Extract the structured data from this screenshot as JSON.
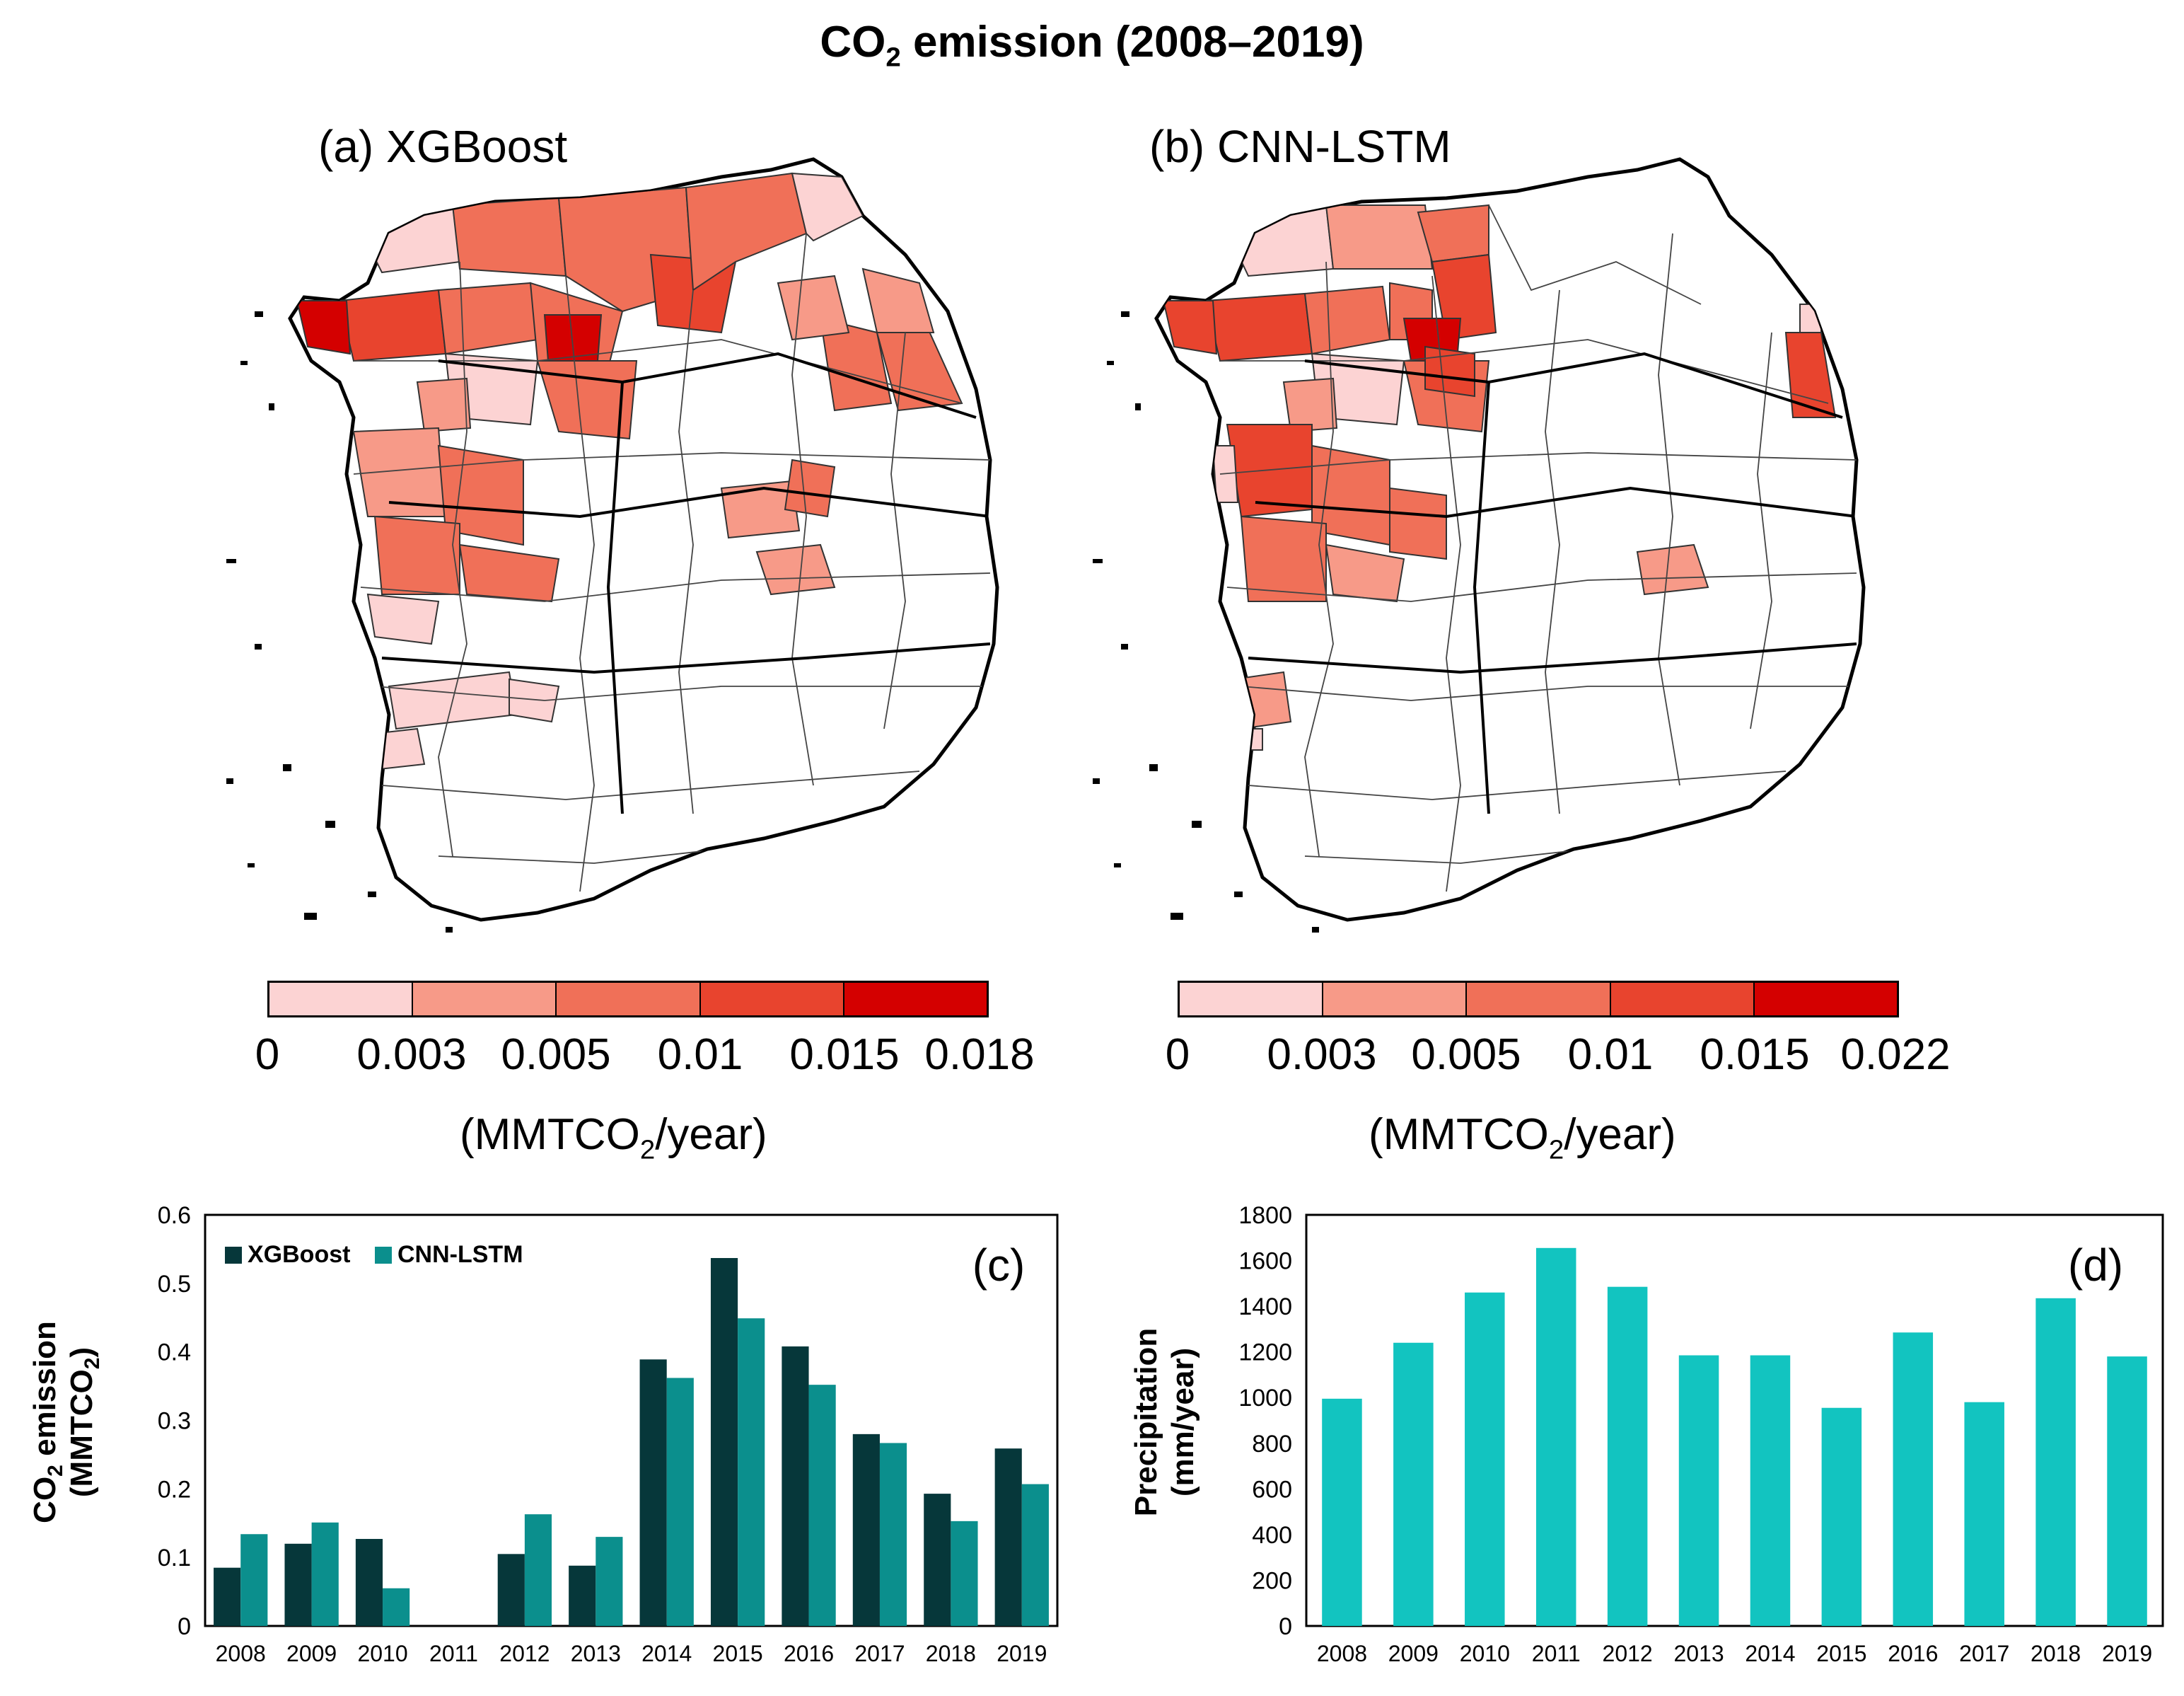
{
  "title": {
    "main": "CO",
    "sub": "2",
    "rest": " emission (2008–2019)"
  },
  "maps": [
    {
      "label": "(a) XGBoost",
      "colorbar": {
        "colors": [
          "#fcd3d3",
          "#f79a88",
          "#f07058",
          "#e8442e",
          "#d40000"
        ],
        "ticks": [
          "0",
          "0.003",
          "0.005",
          "0.01",
          "0.015",
          "0.018"
        ]
      },
      "unit": {
        "pre": "(MMTCO",
        "sub": "2",
        "post": "/year)"
      },
      "highlighted_region_colors": [
        "#fcd3d3",
        "#f79a88",
        "#f07058",
        "#e8442e",
        "#d40000"
      ]
    },
    {
      "label": "(b) CNN-LSTM",
      "colorbar": {
        "colors": [
          "#fcd3d3",
          "#f79a88",
          "#f07058",
          "#e8442e",
          "#d40000"
        ],
        "ticks": [
          "0",
          "0.003",
          "0.005",
          "0.01",
          "0.015",
          "0.022"
        ]
      },
      "unit": {
        "pre": "(MMTCO",
        "sub": "2",
        "post": "/year)"
      },
      "highlighted_region_colors": [
        "#fcd3d3",
        "#f79a88",
        "#f07058",
        "#e8442e",
        "#d40000"
      ]
    }
  ],
  "chart_data": [
    {
      "type": "bar",
      "panel_label": "(c)",
      "categories": [
        "2008",
        "2009",
        "2010",
        "2011",
        "2012",
        "2013",
        "2014",
        "2015",
        "2016",
        "2017",
        "2018",
        "2019"
      ],
      "series": [
        {
          "name": "XGBoost",
          "color": "#06373a",
          "values": [
            0.085,
            0.12,
            0.127,
            0,
            0.105,
            0.088,
            0.389,
            0.537,
            0.408,
            0.28,
            0.193,
            0.259
          ]
        },
        {
          "name": "CNN-LSTM",
          "color": "#0b8f8d",
          "values": [
            0.134,
            0.151,
            0.055,
            0,
            0.163,
            0.13,
            0.362,
            0.449,
            0.352,
            0.267,
            0.153,
            0.207
          ]
        }
      ],
      "ylabel_line1_pre": "CO",
      "ylabel_line1_sub": "2",
      "ylabel_line1_post": " emission",
      "ylabel_line2_pre": "(MMTCO",
      "ylabel_line2_sub": "2",
      "ylabel_line2_post": ")",
      "ylim": [
        0,
        0.6
      ],
      "yticks": [
        "0",
        "0.1",
        "0.2",
        "0.3",
        "0.4",
        "0.5",
        "0.6"
      ],
      "legend": "top-left"
    },
    {
      "type": "bar",
      "panel_label": "(d)",
      "categories": [
        "2008",
        "2009",
        "2010",
        "2011",
        "2012",
        "2013",
        "2014",
        "2015",
        "2016",
        "2017",
        "2018",
        "2019"
      ],
      "series": [
        {
          "name": "Precipitation",
          "color": "#12c4c0",
          "values": [
            995,
            1240,
            1460,
            1655,
            1485,
            1185,
            1185,
            955,
            1285,
            980,
            1435,
            1180
          ]
        }
      ],
      "ylabel_line1": "Precipitation",
      "ylabel_line2": "(mm/year)",
      "ylim": [
        0,
        1800
      ],
      "yticks": [
        "0",
        "200",
        "400",
        "600",
        "800",
        "1000",
        "1200",
        "1400",
        "1600",
        "1800"
      ]
    }
  ]
}
